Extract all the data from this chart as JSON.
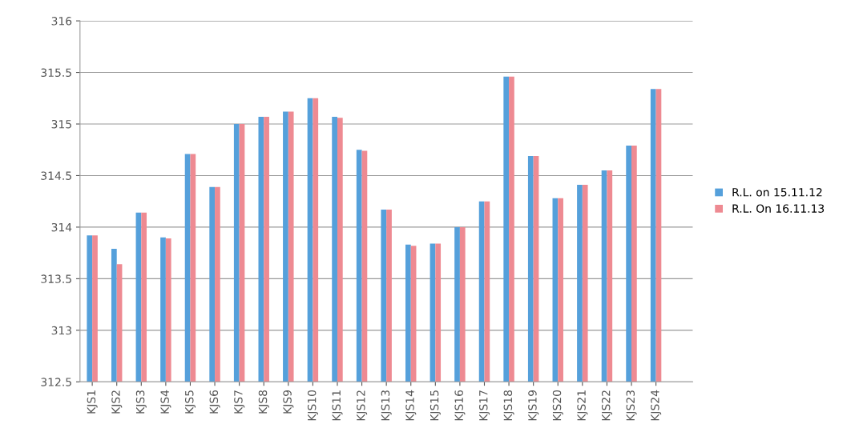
{
  "chart_data": {
    "type": "bar",
    "categories": [
      "KJS1",
      "KJS2",
      "KJS3",
      "KJS4",
      "KJS5",
      "KJS6",
      "KJS7",
      "KJS8",
      "KJS9",
      "KJS10",
      "KJS11",
      "KJS12",
      "KJS13",
      "KJS14",
      "KJS15",
      "KJS16",
      "KJS17",
      "KJS18",
      "KJS19",
      "KJS20",
      "KJS21",
      "KJS22",
      "KJS23",
      "KJS24"
    ],
    "series": [
      {
        "name": "R.L. on 15.11.12",
        "color": "#55a0db",
        "values": [
          313.92,
          313.79,
          314.14,
          313.9,
          314.71,
          314.39,
          315.0,
          315.07,
          315.12,
          315.25,
          315.07,
          314.75,
          314.17,
          313.83,
          313.84,
          314.0,
          314.25,
          315.46,
          314.69,
          314.28,
          314.41,
          314.55,
          314.79,
          315.34
        ]
      },
      {
        "name": "R.L. On 16.11.13",
        "color": "#ee8a92",
        "values": [
          313.92,
          313.64,
          314.14,
          313.89,
          314.71,
          314.39,
          315.0,
          315.07,
          315.12,
          315.25,
          315.06,
          314.74,
          314.17,
          313.82,
          313.84,
          314.0,
          314.25,
          315.46,
          314.69,
          314.28,
          314.41,
          314.55,
          314.79,
          315.34
        ]
      }
    ],
    "ylim": [
      312.5,
      316
    ],
    "yticks": [
      312.5,
      313,
      313.5,
      314,
      314.5,
      315,
      315.5,
      316
    ],
    "grid": "y",
    "legend": "right"
  }
}
